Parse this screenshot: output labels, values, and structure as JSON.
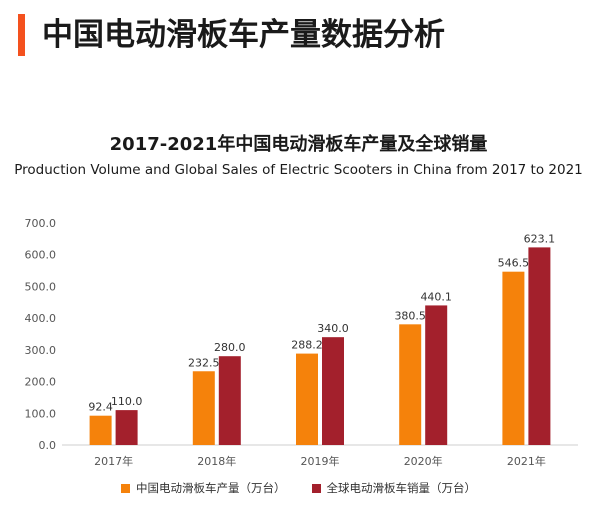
{
  "header": {
    "title": "中国电动滑板车产量数据分析"
  },
  "colors": {
    "accent": "#f4511e",
    "production": "#f5820b",
    "sales": "#a3202c"
  },
  "chart_data": {
    "type": "bar",
    "title": "2017-2021年中国电动滑板车产量及全球销量",
    "subtitle": "Production Volume and Global Sales of Electric Scooters in China from 2017 to 2021",
    "categories": [
      "2017年",
      "2018年",
      "2019年",
      "2020年",
      "2021年"
    ],
    "series": [
      {
        "name": "中国电动滑板车产量（万台）",
        "values": [
          92.4,
          232.5,
          288.2,
          380.5,
          546.5
        ],
        "value_labels": [
          "92.4",
          "232.5",
          "288.2",
          "380.5",
          "546.5"
        ]
      },
      {
        "name": "全球电动滑板车销量（万台）",
        "values": [
          110.0,
          280.0,
          340.0,
          440.1,
          623.1
        ],
        "value_labels": [
          "110.0",
          "280.0",
          "340.0",
          "440.1",
          "623.1"
        ]
      }
    ],
    "yticks": [
      "0.0",
      "100.0",
      "200.0",
      "300.0",
      "400.0",
      "500.0",
      "600.0",
      "700.0"
    ],
    "ylim": [
      0,
      700
    ],
    "legend_position": "bottom"
  }
}
